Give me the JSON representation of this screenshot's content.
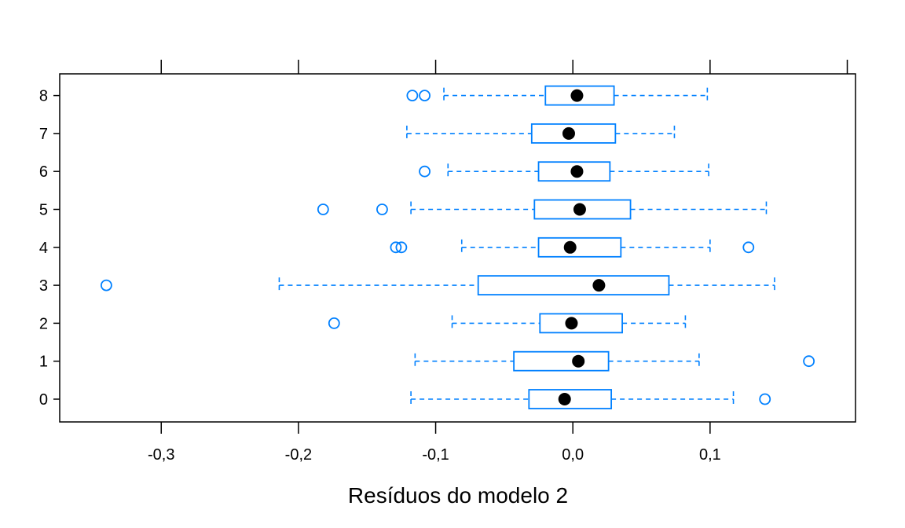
{
  "chart_data": {
    "type": "boxplot",
    "orientation": "horizontal",
    "xlabel": "Resíduos do modelo 2",
    "ylabel": "",
    "title": "",
    "xlim": [
      -0.374,
      0.206
    ],
    "x_ticks": [
      -0.3,
      -0.2,
      -0.1,
      0.0,
      0.1
    ],
    "x_tick_labels": [
      "-0,3",
      "-0,2",
      "-0,1",
      "0,0",
      "0,1"
    ],
    "x_ticks_top": [
      -0.3,
      -0.2,
      -0.1,
      0.0,
      0.1,
      0.2
    ],
    "categories": [
      "0",
      "1",
      "2",
      "3",
      "4",
      "5",
      "6",
      "7",
      "8"
    ],
    "grid": false,
    "colors": {
      "box": "#0080ff",
      "median_dot": "#000000",
      "frame": "#000000"
    },
    "groups": [
      {
        "label": "0",
        "whisker_low": -0.118,
        "q1": -0.032,
        "median": -0.006,
        "q3": 0.028,
        "whisker_high": 0.117,
        "outliers": [
          0.14
        ]
      },
      {
        "label": "1",
        "whisker_low": -0.115,
        "q1": -0.043,
        "median": 0.004,
        "q3": 0.026,
        "whisker_high": 0.092,
        "outliers": [
          0.172
        ]
      },
      {
        "label": "2",
        "whisker_low": -0.088,
        "q1": -0.024,
        "median": -0.001,
        "q3": 0.036,
        "whisker_high": 0.082,
        "outliers": [
          -0.174
        ]
      },
      {
        "label": "3",
        "whisker_low": -0.214,
        "q1": -0.069,
        "median": 0.019,
        "q3": 0.07,
        "whisker_high": 0.147,
        "outliers": [
          -0.34
        ]
      },
      {
        "label": "4",
        "whisker_low": -0.081,
        "q1": -0.025,
        "median": -0.002,
        "q3": 0.035,
        "whisker_high": 0.1,
        "outliers": [
          -0.129,
          -0.125,
          0.128
        ]
      },
      {
        "label": "5",
        "whisker_low": -0.118,
        "q1": -0.028,
        "median": 0.005,
        "q3": 0.042,
        "whisker_high": 0.141,
        "outliers": [
          -0.182,
          -0.139
        ]
      },
      {
        "label": "6",
        "whisker_low": -0.091,
        "q1": -0.025,
        "median": 0.003,
        "q3": 0.027,
        "whisker_high": 0.099,
        "outliers": [
          -0.108
        ]
      },
      {
        "label": "7",
        "whisker_low": -0.121,
        "q1": -0.03,
        "median": -0.003,
        "q3": 0.031,
        "whisker_high": 0.074,
        "outliers": []
      },
      {
        "label": "8",
        "whisker_low": -0.094,
        "q1": -0.02,
        "median": 0.003,
        "q3": 0.03,
        "whisker_high": 0.098,
        "outliers": [
          -0.117,
          -0.108
        ]
      }
    ]
  }
}
